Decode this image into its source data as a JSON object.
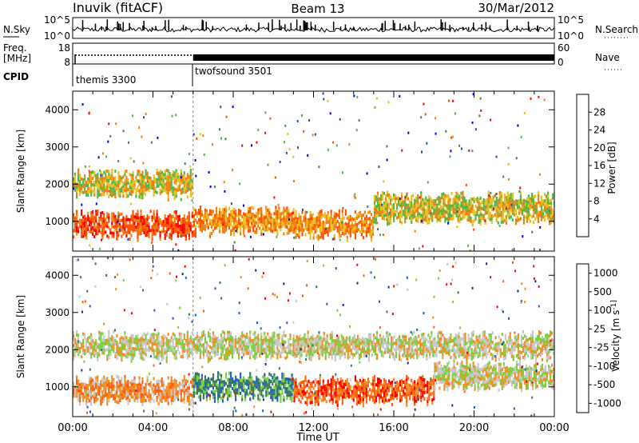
{
  "header": {
    "station": "Inuvik (fitACF)",
    "beam": "Beam 13",
    "date": "30/Mar/2012"
  },
  "noise_panel": {
    "left_label": "N.Sky",
    "left_ticks": [
      "10^5",
      "10^0"
    ],
    "right_ticks": [
      "10^5",
      "10^0"
    ],
    "right_label": "N.Search"
  },
  "freq_panel": {
    "label_line1": "Freq.",
    "label_line2": "[MHz]",
    "left_ticks": [
      "18",
      "8"
    ],
    "right_ticks": [
      "60",
      "0"
    ],
    "right_label": "Nave"
  },
  "cpid": {
    "label": "CPID",
    "programs": [
      {
        "name": "themis 3300",
        "start_hour": 0
      },
      {
        "name": "twofsound 3501",
        "start_hour": 6
      }
    ]
  },
  "colors": {
    "power_scale": [
      "#0000ff",
      "#2a4ea8",
      "#3d8a5e",
      "#4fb848",
      "#e8c020",
      "#f08010",
      "#ff5000",
      "#ff0000"
    ],
    "velocity_scale": [
      "#1030a0",
      "#2060c0",
      "#3a7a5a",
      "#7ad040",
      "#c8c8c8",
      "#f09020",
      "#ff6010",
      "#ff0000"
    ]
  },
  "chart_data": [
    {
      "type": "heatmap",
      "title": "Power",
      "ylabel": "Slant Range [km]",
      "ylim": [
        200,
        4500
      ],
      "yticks": [
        "1000",
        "2000",
        "3000",
        "4000"
      ],
      "xlim": [
        0,
        24
      ],
      "colorbar": {
        "label": "Power [dB]",
        "ticks": [
          "4",
          "8",
          "12",
          "16",
          "20",
          "24",
          "28"
        ],
        "range": [
          0,
          32
        ]
      },
      "echo_bands": [
        {
          "start_hour": 0,
          "end_hour": 6,
          "range_km": [
            600,
            1200
          ],
          "value": 26
        },
        {
          "start_hour": 0,
          "end_hour": 6,
          "range_km": [
            1700,
            2300
          ],
          "value": 18
        },
        {
          "start_hour": 6,
          "end_hour": 11,
          "range_km": [
            700,
            1300
          ],
          "value": 24
        },
        {
          "start_hour": 11,
          "end_hour": 15,
          "range_km": [
            600,
            1200
          ],
          "value": 22
        },
        {
          "start_hour": 15,
          "end_hour": 24,
          "range_km": [
            1000,
            1700
          ],
          "value": 20
        }
      ]
    },
    {
      "type": "heatmap",
      "title": "Velocity",
      "ylabel": "Slant Range [km]",
      "ylim": [
        200,
        4500
      ],
      "yticks": [
        "1000",
        "2000",
        "3000",
        "4000"
      ],
      "xlim": [
        0,
        24
      ],
      "xlabel": "Time UT",
      "xticks": [
        "00:00",
        "04:00",
        "08:00",
        "12:00",
        "16:00",
        "20:00",
        "00:00"
      ],
      "colorbar": {
        "label": "Velocity [m s^-1]",
        "ticks": [
          "1000",
          "500",
          "100",
          "25",
          "-25",
          "-100",
          "-500",
          "-1000"
        ]
      },
      "echo_bands": [
        {
          "start_hour": 0,
          "end_hour": 6,
          "range_km": [
            600,
            1200
          ],
          "value": -150
        },
        {
          "start_hour": 0,
          "end_hour": 24,
          "range_km": [
            1800,
            2400
          ],
          "value": 0
        },
        {
          "start_hour": 6,
          "end_hour": 11,
          "range_km": [
            700,
            1300
          ],
          "value": 150
        },
        {
          "start_hour": 11,
          "end_hour": 18,
          "range_km": [
            600,
            1200
          ],
          "value": -200
        },
        {
          "start_hour": 18,
          "end_hour": 24,
          "range_km": [
            1000,
            1600
          ],
          "value": -80
        }
      ]
    }
  ]
}
